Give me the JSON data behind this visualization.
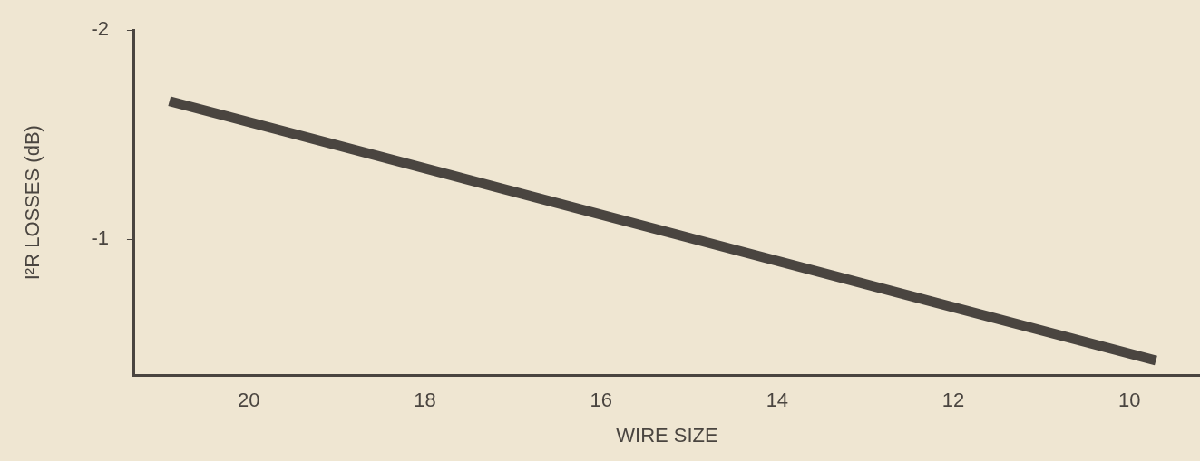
{
  "chart_data": {
    "type": "line",
    "xlabel": "WIRE SIZE",
    "ylabel": "I²R LOSSES (dB)",
    "x": [
      20.9,
      9.7
    ],
    "series": [
      {
        "color": "#4a4540",
        "values": [
          -1.66,
          -0.42
        ]
      }
    ],
    "xlim": [
      21.3,
      9.2
    ],
    "xticks": [
      20,
      18,
      16,
      14,
      12,
      10
    ],
    "ylim": [
      -0.35,
      -2
    ],
    "yticks": [
      -2,
      -1
    ],
    "grid": false,
    "legend": false,
    "marker": "none",
    "line_style": "solid"
  }
}
